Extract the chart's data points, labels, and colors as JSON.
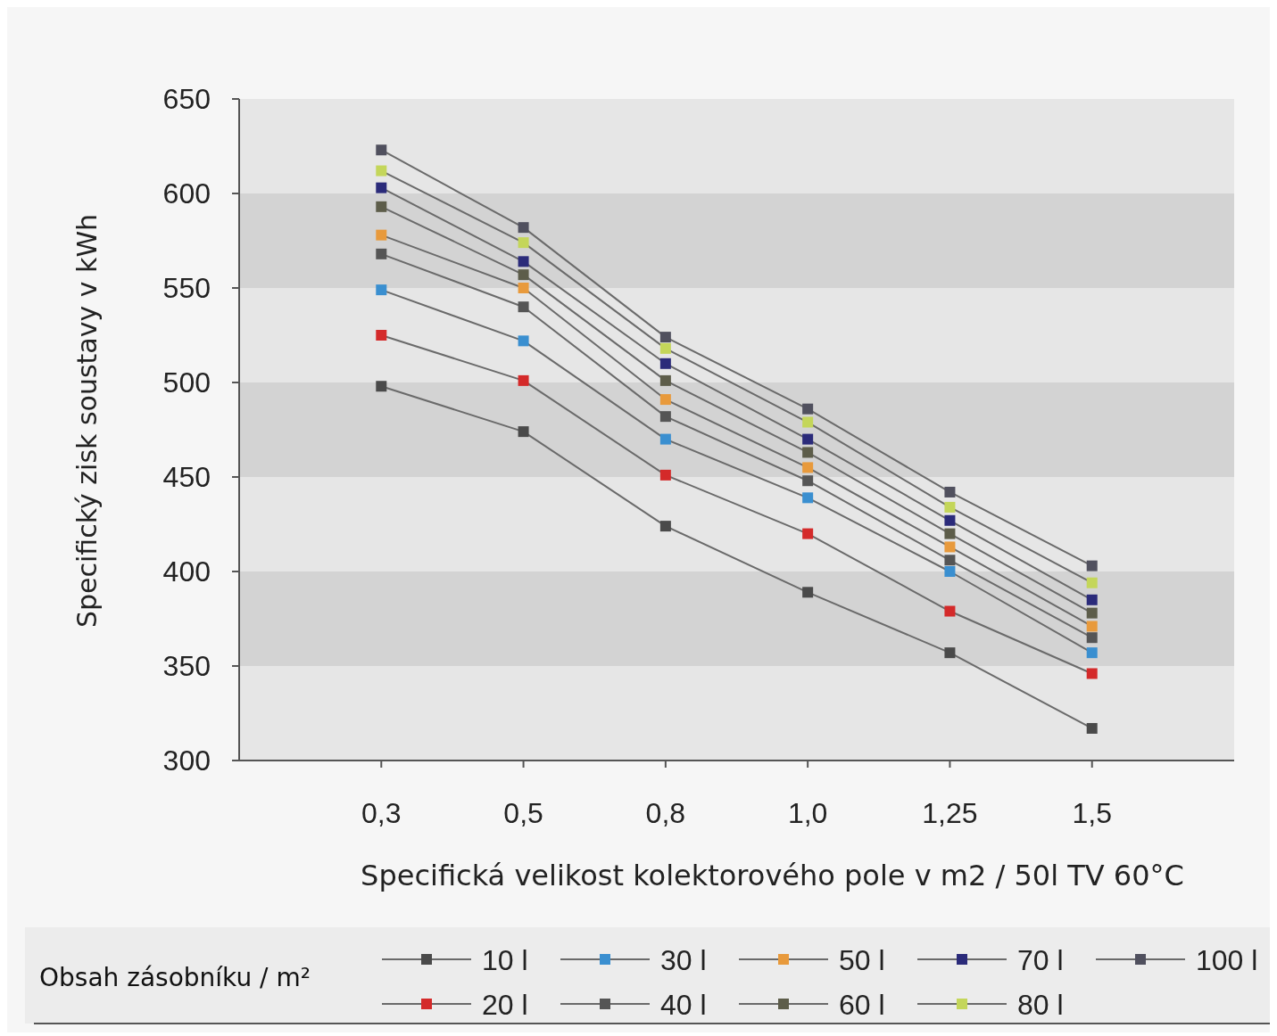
{
  "chart_data": {
    "type": "line",
    "xlabel": "Specifická velikost kolektorového pole v m2 / 50l TV 60°C",
    "ylabel": "Specifický zisk soustavy v kWh",
    "legend_title": "Obsah zásobníku / m²",
    "categories": [
      "0,3",
      "0,5",
      "0,8",
      "1,0",
      "1,25",
      "1,5"
    ],
    "ylim": [
      300,
      650
    ],
    "yticks": [
      300,
      350,
      400,
      450,
      500,
      550,
      600,
      650
    ],
    "marker": "square",
    "line_style": "solid",
    "legend": "bottom",
    "bands": [
      {
        "axis": "y",
        "from": 550,
        "to": 600,
        "color": "#d3d3d3"
      },
      {
        "axis": "y",
        "from": 450,
        "to": 500,
        "color": "#d3d3d3"
      },
      {
        "axis": "y",
        "from": 350,
        "to": 400,
        "color": "#d3d3d3"
      }
    ],
    "series": [
      {
        "name": "10 l",
        "color": "#4a4a4a",
        "values": [
          498,
          474,
          424,
          389,
          357,
          317
        ]
      },
      {
        "name": "20 l",
        "color": "#d42a2a",
        "values": [
          525,
          501,
          451,
          420,
          379,
          346
        ]
      },
      {
        "name": "30 l",
        "color": "#3a8fd0",
        "values": [
          549,
          522,
          470,
          439,
          400,
          357
        ]
      },
      {
        "name": "40 l",
        "color": "#555555",
        "values": [
          568,
          540,
          482,
          448,
          406,
          365
        ]
      },
      {
        "name": "50 l",
        "color": "#e89a3c",
        "values": [
          578,
          550,
          491,
          455,
          413,
          371
        ]
      },
      {
        "name": "60 l",
        "color": "#5d5d4a",
        "values": [
          593,
          557,
          501,
          463,
          420,
          378
        ]
      },
      {
        "name": "70 l",
        "color": "#2b2b7a",
        "values": [
          603,
          564,
          510,
          470,
          427,
          385
        ]
      },
      {
        "name": "80 l",
        "color": "#c4d65a",
        "values": [
          612,
          574,
          518,
          479,
          434,
          394
        ]
      },
      {
        "name": "100 l",
        "color": "#50505e",
        "values": [
          623,
          582,
          524,
          486,
          442,
          403
        ]
      }
    ]
  }
}
